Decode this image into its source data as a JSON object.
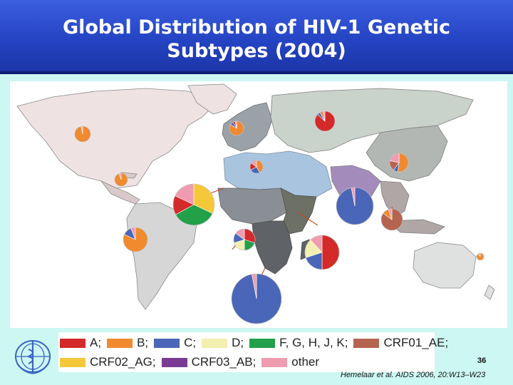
{
  "slide": {
    "title_line1": "Global Distribution of HIV-1 Genetic",
    "title_line2": "Subtypes (2004)",
    "page_number": "36",
    "citation": "Hemelaar et al.  AIDS 2006, 20:W13–W23"
  },
  "colors": {
    "A": "#d42a2a",
    "B": "#f08a2e",
    "C": "#4a66b8",
    "D": "#f3efb0",
    "FGHJK": "#22a04a",
    "CRF01_AE": "#b56450",
    "CRF02_AG": "#f5c83a",
    "CRF03_AB": "#7b3b92",
    "other": "#ef9cb0"
  },
  "legend": {
    "row1": [
      {
        "label": "A;",
        "key": "A"
      },
      {
        "label": "B;",
        "key": "B"
      },
      {
        "label": "C;",
        "key": "C"
      },
      {
        "label": "D;",
        "key": "D"
      },
      {
        "label": "F, G, H, J, K;",
        "key": "FGHJK"
      },
      {
        "label": "CRF01_AE;",
        "key": "CRF01_AE"
      }
    ],
    "row2": [
      {
        "label": "CRF02_AG;",
        "key": "CRF02_AG"
      },
      {
        "label": "CRF03_AB;",
        "key": "CRF03_AB"
      },
      {
        "label": "other",
        "key": "other"
      }
    ]
  },
  "pies": [
    {
      "region": "North America",
      "slices": [
        {
          "k": "B",
          "v": 97
        },
        {
          "k": "other",
          "v": 3
        }
      ]
    },
    {
      "region": "Western Europe",
      "slices": [
        {
          "k": "B",
          "v": 84
        },
        {
          "k": "C",
          "v": 8
        },
        {
          "k": "A",
          "v": 5
        },
        {
          "k": "other",
          "v": 3
        }
      ]
    },
    {
      "region": "Eastern Europe and Central Asia",
      "slices": [
        {
          "k": "A",
          "v": 87
        },
        {
          "k": "C",
          "v": 5
        },
        {
          "k": "B",
          "v": 5
        },
        {
          "k": "other",
          "v": 3
        }
      ]
    },
    {
      "region": "East Asia",
      "slices": [
        {
          "k": "B",
          "v": 52
        },
        {
          "k": "C",
          "v": 8
        },
        {
          "k": "CRF01_AE",
          "v": 18
        },
        {
          "k": "other",
          "v": 22
        }
      ]
    },
    {
      "region": "North Africa and Middle East",
      "slices": [
        {
          "k": "B",
          "v": 42
        },
        {
          "k": "C",
          "v": 25
        },
        {
          "k": "A",
          "v": 18
        },
        {
          "k": "other",
          "v": 15
        }
      ]
    },
    {
      "region": "Caribbean",
      "slices": [
        {
          "k": "B",
          "v": 95
        },
        {
          "k": "other",
          "v": 5
        }
      ]
    },
    {
      "region": "West and Central Africa",
      "slices": [
        {
          "k": "CRF02_AG",
          "v": 32
        },
        {
          "k": "FGHJK",
          "v": 35
        },
        {
          "k": "A",
          "v": 15
        },
        {
          "k": "other",
          "v": 18
        }
      ]
    },
    {
      "region": "South and South-East Asia (India)",
      "slices": [
        {
          "k": "C",
          "v": 97
        },
        {
          "k": "other",
          "v": 3
        }
      ]
    },
    {
      "region": "South-East Asia",
      "slices": [
        {
          "k": "CRF01_AE",
          "v": 85
        },
        {
          "k": "B",
          "v": 10
        },
        {
          "k": "other",
          "v": 5
        }
      ]
    },
    {
      "region": "Latin America",
      "slices": [
        {
          "k": "B",
          "v": 82
        },
        {
          "k": "C",
          "v": 12
        },
        {
          "k": "other",
          "v": 6
        }
      ]
    },
    {
      "region": "Central Africa",
      "slices": [
        {
          "k": "A",
          "v": 30
        },
        {
          "k": "FGHJK",
          "v": 20
        },
        {
          "k": "D",
          "v": 20
        },
        {
          "k": "C",
          "v": 15
        },
        {
          "k": "other",
          "v": 15
        }
      ]
    },
    {
      "region": "East Africa",
      "slices": [
        {
          "k": "A",
          "v": 50
        },
        {
          "k": "C",
          "v": 20
        },
        {
          "k": "D",
          "v": 18
        },
        {
          "k": "other",
          "v": 12
        }
      ]
    },
    {
      "region": "Southern Africa",
      "slices": [
        {
          "k": "C",
          "v": 97
        },
        {
          "k": "other",
          "v": 3
        }
      ]
    },
    {
      "region": "Oceania",
      "slices": [
        {
          "k": "B",
          "v": 90
        },
        {
          "k": "other",
          "v": 10
        }
      ]
    }
  ]
}
